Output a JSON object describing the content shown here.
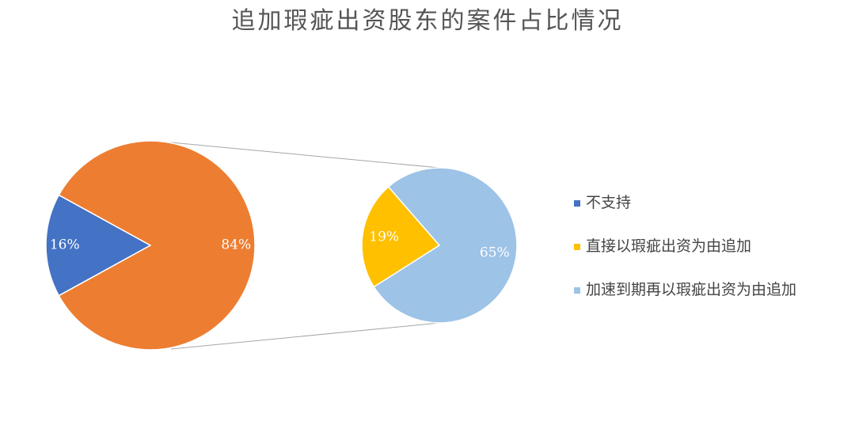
{
  "chart_data": {
    "type": "pie-of-pie",
    "title": "追加瑕疵出资股东的案件占比情况",
    "pie": {
      "categories": [
        "不支持",
        null
      ],
      "values": [
        16,
        84
      ],
      "value_labels": [
        "16%",
        "84%"
      ],
      "colors": [
        "#4472c4",
        "#ed7d31"
      ]
    },
    "sub_pie": {
      "categories": [
        "直接以瑕疵出资为由追加",
        "加速到期再以瑕疵出资为由追加"
      ],
      "values": [
        19,
        65
      ],
      "value_labels": [
        "19%",
        "65%"
      ],
      "colors": [
        "#ffc000",
        "#9dc3e6"
      ]
    }
  }
}
